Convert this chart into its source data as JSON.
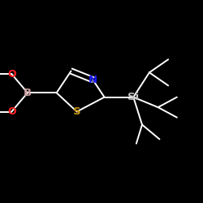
{
  "background": "#000000",
  "bond_color": "#ffffff",
  "bond_width": 1.4,
  "atom_N": {
    "color": "#1a1aff",
    "fontsize": 9.5
  },
  "atom_S": {
    "color": "#c8960c",
    "fontsize": 9.5
  },
  "atom_B": {
    "color": "#c8a0a0",
    "fontsize": 9.5
  },
  "atom_O": {
    "color": "#ff2020",
    "fontsize": 9.0
  },
  "atom_Si": {
    "color": "#c0c0c0",
    "fontsize": 9.5
  },
  "figsize": [
    2.5,
    2.5
  ],
  "dpi": 100,
  "xlim": [
    -2.5,
    4.5
  ],
  "ylim": [
    -2.5,
    3.0
  ]
}
